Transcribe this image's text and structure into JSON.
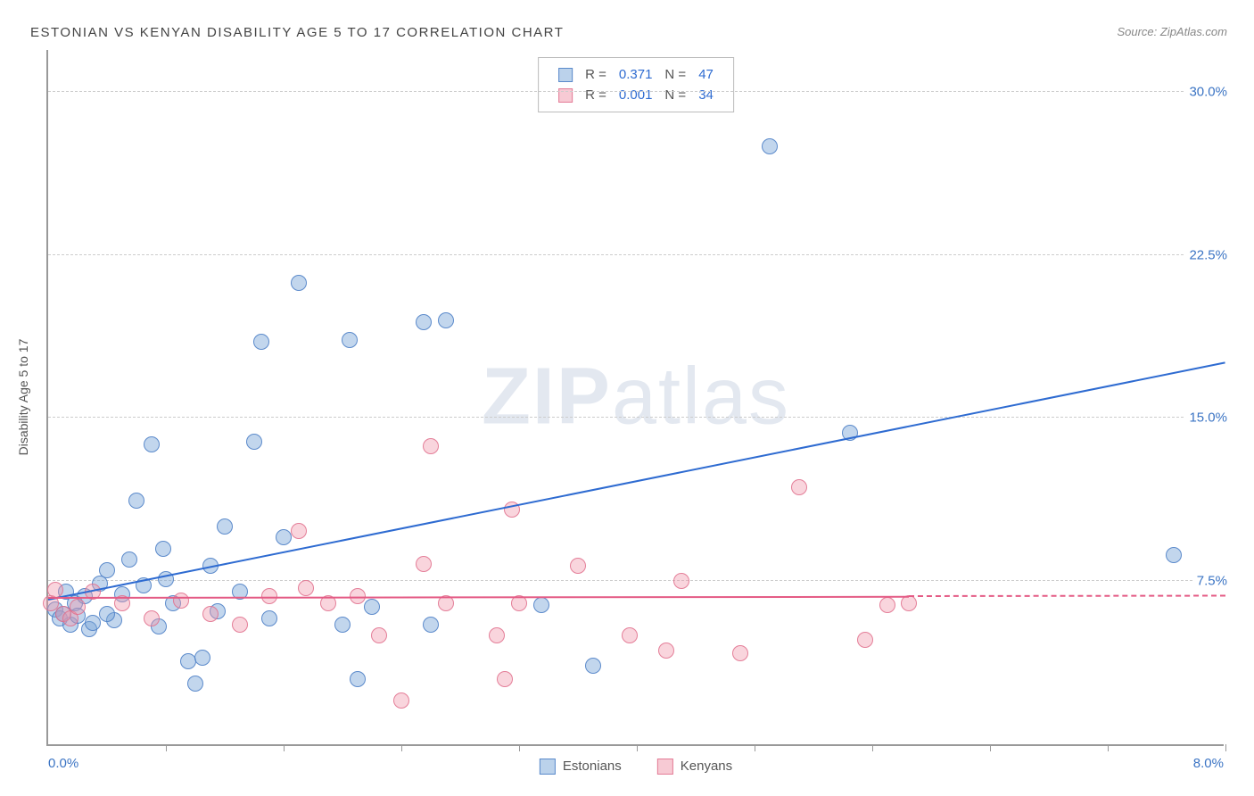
{
  "title": "ESTONIAN VS KENYAN DISABILITY AGE 5 TO 17 CORRELATION CHART",
  "source_prefix": "Source: ",
  "source_name": "ZipAtlas.com",
  "watermark": {
    "bold": "ZIP",
    "rest": "atlas"
  },
  "y_axis_title": "Disability Age 5 to 17",
  "chart": {
    "type": "scatter",
    "xlim": [
      0.0,
      8.0
    ],
    "ylim": [
      0.0,
      32.0
    ],
    "background_color": "#ffffff",
    "grid_color": "#cccccc",
    "marker_size": 18,
    "x_tick_positions": [
      0.8,
      1.6,
      2.4,
      3.2,
      4.0,
      4.8,
      5.6,
      6.4,
      7.2,
      8.0
    ],
    "y_gridlines": [
      {
        "value": 7.5,
        "label": "7.5%"
      },
      {
        "value": 15.0,
        "label": "15.0%"
      },
      {
        "value": 22.5,
        "label": "22.5%"
      },
      {
        "value": 30.0,
        "label": "30.0%"
      }
    ],
    "x_min_label": "0.0%",
    "x_max_label": "8.0%",
    "series": [
      {
        "name": "Estonians",
        "color_fill": "rgba(120,165,216,0.45)",
        "color_border": "rgba(80,130,200,0.9)",
        "trend_color": "#2e6bd1",
        "R": "0.371",
        "N": "47",
        "trend": {
          "x0": 0.0,
          "y0": 6.6,
          "x1": 8.0,
          "y1": 17.5
        },
        "points": [
          [
            0.05,
            6.2
          ],
          [
            0.08,
            5.8
          ],
          [
            0.12,
            7.0
          ],
          [
            0.15,
            5.5
          ],
          [
            0.18,
            6.5
          ],
          [
            0.2,
            5.9
          ],
          [
            0.25,
            6.8
          ],
          [
            0.28,
            5.3
          ],
          [
            0.3,
            5.6
          ],
          [
            0.35,
            7.4
          ],
          [
            0.4,
            8.0
          ],
          [
            0.45,
            5.7
          ],
          [
            0.5,
            6.9
          ],
          [
            0.55,
            8.5
          ],
          [
            0.6,
            11.2
          ],
          [
            0.65,
            7.3
          ],
          [
            0.7,
            13.8
          ],
          [
            0.75,
            5.4
          ],
          [
            0.78,
            9.0
          ],
          [
            0.8,
            7.6
          ],
          [
            0.85,
            6.5
          ],
          [
            0.95,
            3.8
          ],
          [
            1.0,
            2.8
          ],
          [
            1.05,
            4.0
          ],
          [
            1.1,
            8.2
          ],
          [
            1.15,
            6.1
          ],
          [
            1.2,
            10.0
          ],
          [
            1.3,
            7.0
          ],
          [
            1.4,
            13.9
          ],
          [
            1.45,
            18.5
          ],
          [
            1.5,
            5.8
          ],
          [
            1.6,
            9.5
          ],
          [
            1.7,
            21.2
          ],
          [
            2.0,
            5.5
          ],
          [
            2.05,
            18.6
          ],
          [
            2.1,
            3.0
          ],
          [
            2.2,
            6.3
          ],
          [
            2.55,
            19.4
          ],
          [
            2.6,
            5.5
          ],
          [
            2.7,
            19.5
          ],
          [
            3.35,
            6.4
          ],
          [
            3.7,
            3.6
          ],
          [
            4.9,
            27.5
          ],
          [
            5.45,
            14.3
          ],
          [
            7.65,
            8.7
          ],
          [
            0.4,
            6.0
          ],
          [
            0.1,
            6.0
          ]
        ]
      },
      {
        "name": "Kenyans",
        "color_fill": "rgba(240,150,170,0.4)",
        "color_border": "rgba(225,110,140,0.85)",
        "trend_color": "#e45b85",
        "R": "0.001",
        "N": "34",
        "trend_solid": {
          "x0": 0.0,
          "y0": 6.7,
          "x1": 5.85,
          "y1": 6.75
        },
        "trend_dash": {
          "x0": 5.85,
          "y0": 6.75,
          "x1": 8.0,
          "y1": 6.77
        },
        "points": [
          [
            0.02,
            6.5
          ],
          [
            0.05,
            7.1
          ],
          [
            0.1,
            6.0
          ],
          [
            0.15,
            5.8
          ],
          [
            0.2,
            6.3
          ],
          [
            0.3,
            7.0
          ],
          [
            0.5,
            6.5
          ],
          [
            0.7,
            5.8
          ],
          [
            0.9,
            6.6
          ],
          [
            1.1,
            6.0
          ],
          [
            1.3,
            5.5
          ],
          [
            1.5,
            6.8
          ],
          [
            1.7,
            9.8
          ],
          [
            1.75,
            7.2
          ],
          [
            1.9,
            6.5
          ],
          [
            2.1,
            6.8
          ],
          [
            2.25,
            5.0
          ],
          [
            2.4,
            2.0
          ],
          [
            2.55,
            8.3
          ],
          [
            2.6,
            13.7
          ],
          [
            2.7,
            6.5
          ],
          [
            3.05,
            5.0
          ],
          [
            3.1,
            3.0
          ],
          [
            3.15,
            10.8
          ],
          [
            3.2,
            6.5
          ],
          [
            3.6,
            8.2
          ],
          [
            3.95,
            5.0
          ],
          [
            4.2,
            4.3
          ],
          [
            4.3,
            7.5
          ],
          [
            4.7,
            4.2
          ],
          [
            5.1,
            11.8
          ],
          [
            5.55,
            4.8
          ],
          [
            5.7,
            6.4
          ],
          [
            5.85,
            6.5
          ]
        ]
      }
    ]
  },
  "legend_top_labels": {
    "R": "R  =",
    "N": "N  ="
  },
  "legend_bottom": [
    "Estonians",
    "Kenyans"
  ]
}
